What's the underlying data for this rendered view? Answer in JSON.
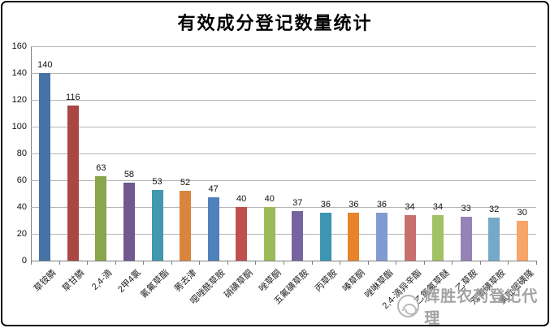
{
  "page": {
    "watermark": "辉胜农药登记代理"
  },
  "chart_data": {
    "type": "bar",
    "title": "有效成分登记数量统计",
    "categories": [
      "草铵膦",
      "草甘膦",
      "2,4-滴",
      "2甲4氯",
      "氰氟草酯",
      "莠去津",
      "噁唑酰草胺",
      "硝磺草酮",
      "唑草酮",
      "五氟磺草胺",
      "丙草胺",
      "嗪草酮",
      "唑啉草酯",
      "2,4-滴异辛酯",
      "乙氧氟草醚",
      "乙草胺",
      "双氟磺草胺",
      "氯吡嘧磺隆"
    ],
    "values": [
      140,
      116,
      63,
      58,
      53,
      52,
      47,
      40,
      40,
      37,
      36,
      36,
      36,
      34,
      34,
      33,
      32,
      30
    ],
    "bar_colors": [
      "#4572A7",
      "#AA4643",
      "#89A54E",
      "#71588F",
      "#4198AF",
      "#DB843D",
      "#4F81BD",
      "#C0504D",
      "#9BBB59",
      "#7664A0",
      "#3D95B2",
      "#E8832A",
      "#7F9BD1",
      "#C8706D",
      "#A3C266",
      "#9583B7",
      "#74A9C7",
      "#F9A468"
    ],
    "xlabel": "",
    "ylabel": "",
    "ylim": [
      0,
      160
    ],
    "yticks": [
      0,
      20,
      40,
      60,
      80,
      100,
      120,
      140,
      160
    ],
    "grid": true,
    "legend_position": "none",
    "value_labels_shown": true
  }
}
